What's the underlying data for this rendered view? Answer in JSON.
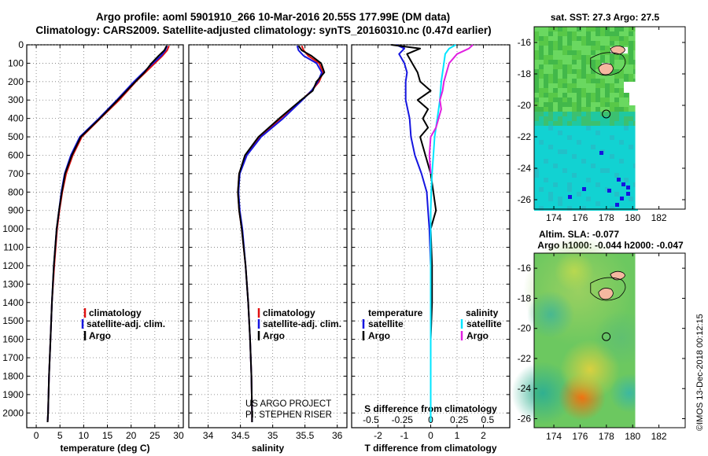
{
  "header": {
    "line1": "Argo profile: aoml 5901910_266 10-Mar-2016 20.55S 177.99E (DM data)",
    "line2": "Climatology: CARS2009. Satellite-adjusted climatology: synTS_20160310.nc (0.47d earlier)"
  },
  "credits": {
    "project": "US ARGO PROJECT",
    "pi": "PI: STEPHEN RISER",
    "stamp": "©IMOS 13-Dec-2018 00:12:15"
  },
  "legend_temp": [
    "climatology",
    "satellite-adj. clim.",
    "Argo"
  ],
  "legend_sal": [
    "climatology",
    "satellite-adj. clim.",
    "Argo"
  ],
  "legend_diff": {
    "temp_title": "temperature",
    "sal_title": "salinity",
    "temp_items": [
      "satellite",
      "Argo"
    ],
    "sal_items": [
      "satellite",
      "Argo"
    ]
  },
  "maps": {
    "top_title": "sat. SST: 27.3 Argo: 27.5",
    "mid_title1": "Altim. SLA: -0.077",
    "mid_title2": "Argo h1000: -0.044 h2000: -0.047",
    "lat_ticks": [
      "-16",
      "-18",
      "-20",
      "-22",
      "-24",
      "-26"
    ],
    "lon_ticks": [
      "174",
      "176",
      "178",
      "180",
      "182"
    ]
  },
  "colors": {
    "climatology": "#e01010",
    "satellite": "#1515e0",
    "argo": "#000000",
    "sal_sat": "#00e5ff",
    "sal_argo": "#e020e0",
    "land": "#f5b8a0",
    "sst_cyan": "#10d8d8",
    "sst_green": "#40c050"
  },
  "chart_data": [
    {
      "type": "line",
      "title": "",
      "xlabel": "temperature (deg C)",
      "ylabel": "",
      "xlim": [
        -2,
        31
      ],
      "ylim": [
        2080,
        0
      ],
      "xticks": [
        "0",
        "5",
        "10",
        "15",
        "20",
        "25",
        "30"
      ],
      "yticks": [
        "0",
        "100",
        "200",
        "300",
        "400",
        "500",
        "600",
        "700",
        "800",
        "900",
        "1000",
        "1100",
        "1200",
        "1300",
        "1400",
        "1500",
        "1600",
        "1700",
        "1800",
        "1900",
        "2000"
      ],
      "grid": true,
      "series": [
        {
          "name": "climatology",
          "color": "#e01010",
          "depth": [
            5,
            30,
            60,
            100,
            150,
            200,
            300,
            400,
            500,
            600,
            700,
            800,
            900,
            1000,
            1200,
            1400,
            1600,
            1800,
            2000,
            2050
          ],
          "values": [
            28.0,
            27.6,
            26.6,
            25.0,
            23.0,
            21.0,
            17.5,
            13.5,
            9.6,
            7.7,
            6.3,
            5.5,
            4.9,
            4.4,
            3.8,
            3.3,
            3.0,
            2.7,
            2.5,
            2.4
          ]
        },
        {
          "name": "satellite-adj. clim.",
          "color": "#1515e0",
          "depth": [
            5,
            30,
            60,
            100,
            150,
            200,
            300,
            400,
            500,
            600,
            700,
            800,
            900,
            1000,
            1200,
            1400,
            1600,
            1800,
            2000,
            2050
          ],
          "values": [
            27.6,
            27.2,
            26.3,
            24.6,
            22.6,
            20.6,
            17.0,
            13.2,
            9.2,
            7.3,
            6.0,
            5.3,
            4.8,
            4.3,
            3.7,
            3.3,
            3.0,
            2.7,
            2.5,
            2.4
          ]
        },
        {
          "name": "Argo",
          "color": "#000000",
          "depth": [
            5,
            30,
            60,
            100,
            150,
            200,
            300,
            400,
            500,
            600,
            700,
            800,
            900,
            1000,
            1200,
            1400,
            1600,
            1800,
            2000,
            2050
          ],
          "values": [
            27.5,
            27.0,
            25.8,
            24.3,
            22.8,
            20.9,
            17.2,
            13.4,
            9.4,
            7.5,
            6.1,
            5.4,
            4.8,
            4.3,
            3.7,
            3.3,
            3.0,
            2.7,
            2.5,
            2.4
          ]
        }
      ]
    },
    {
      "type": "line",
      "title": "",
      "xlabel": "salinity",
      "ylabel": "",
      "xlim": [
        33.7,
        36.15
      ],
      "ylim": [
        2080,
        0
      ],
      "xticks": [
        "34",
        "34.5",
        "35",
        "35.5",
        "36"
      ],
      "grid": true,
      "series": [
        {
          "name": "climatology",
          "color": "#e01010",
          "depth": [
            5,
            30,
            60,
            100,
            150,
            200,
            250,
            300,
            400,
            500,
            600,
            700,
            800,
            900,
            1000,
            1200,
            1400,
            1600,
            1800,
            2000,
            2050
          ],
          "values": [
            35.45,
            35.48,
            35.55,
            35.72,
            35.78,
            35.72,
            35.6,
            35.45,
            35.12,
            34.8,
            34.58,
            34.48,
            34.46,
            34.48,
            34.52,
            34.58,
            34.62,
            34.65,
            34.67,
            34.68,
            34.68
          ]
        },
        {
          "name": "satellite-adj. clim.",
          "color": "#1515e0",
          "depth": [
            5,
            30,
            60,
            100,
            150,
            200,
            250,
            300,
            400,
            500,
            600,
            700,
            800,
            900,
            1000,
            1200,
            1400,
            1600,
            1800,
            2000,
            2050
          ],
          "values": [
            35.38,
            35.4,
            35.48,
            35.68,
            35.76,
            35.7,
            35.6,
            35.46,
            35.16,
            34.82,
            34.6,
            34.49,
            34.47,
            34.49,
            34.53,
            34.58,
            34.62,
            34.65,
            34.67,
            34.68,
            34.68
          ]
        },
        {
          "name": "Argo",
          "color": "#000000",
          "depth": [
            5,
            30,
            60,
            100,
            150,
            200,
            250,
            300,
            400,
            500,
            600,
            700,
            800,
            900,
            1000,
            1200,
            1400,
            1600,
            1800,
            2000,
            2050
          ],
          "values": [
            35.4,
            35.45,
            35.6,
            35.75,
            35.8,
            35.68,
            35.62,
            35.44,
            35.1,
            34.78,
            34.57,
            34.48,
            34.46,
            34.48,
            34.52,
            34.58,
            34.62,
            34.65,
            34.67,
            34.68,
            34.68
          ]
        }
      ]
    },
    {
      "type": "line",
      "title": "",
      "xlabel": "T difference from climatology",
      "xlabel_top": "S difference from climatology",
      "ylabel": "",
      "xlim": [
        -3,
        3
      ],
      "ylim": [
        2080,
        0
      ],
      "xticks": [
        "-2",
        "-1",
        "0",
        "1",
        "2"
      ],
      "xticks_top": [
        "-0.5",
        "-0.25",
        "0",
        "0.25",
        "0.5"
      ],
      "grid": true,
      "series": [
        {
          "name": "temperature satellite",
          "color": "#1515e0",
          "depth": [
            0,
            20,
            50,
            100,
            150,
            200,
            300,
            400,
            500,
            600,
            700,
            800,
            900,
            1000,
            1200,
            1400,
            1600,
            1800,
            2000,
            2050
          ],
          "values": [
            -1.3,
            -1.0,
            -1.2,
            -1.0,
            -0.9,
            -0.95,
            -0.95,
            -0.8,
            -0.75,
            -0.6,
            -0.35,
            -0.15,
            -0.1,
            -0.05,
            0.0,
            0.0,
            0.0,
            0.0,
            0.0,
            0.0
          ]
        },
        {
          "name": "temperature Argo",
          "color": "#000000",
          "depth": [
            0,
            20,
            50,
            100,
            150,
            200,
            250,
            300,
            350,
            400,
            450,
            500,
            600,
            700,
            800,
            900,
            1000,
            1200,
            1400,
            1600,
            1800,
            2000,
            2050
          ],
          "values": [
            -1.5,
            -0.4,
            -0.9,
            -0.7,
            -0.5,
            -0.4,
            0.0,
            -0.5,
            -0.1,
            -0.3,
            -0.1,
            -0.4,
            -0.2,
            0.0,
            0.1,
            0.2,
            0.0,
            0.05,
            0.05,
            0.0,
            0.0,
            0.0,
            0.0
          ]
        },
        {
          "name": "salinity satellite",
          "color": "#00e5ff",
          "depth": [
            0,
            20,
            50,
            100,
            150,
            200,
            300,
            400,
            500,
            600,
            700,
            800,
            900,
            1000,
            1200,
            1400,
            1600,
            1800,
            2000,
            2050
          ],
          "values": [
            0.95,
            0.7,
            0.55,
            0.5,
            0.45,
            0.4,
            0.35,
            0.25,
            0.15,
            0.1,
            0.05,
            0.02,
            0.0,
            0.0,
            0.0,
            0.0,
            0.0,
            0.0,
            0.0,
            0.0
          ]
        },
        {
          "name": "salinity Argo",
          "color": "#e020e0",
          "depth": [
            0,
            20,
            50,
            100,
            150,
            200,
            250,
            300,
            350,
            400,
            450,
            500,
            600,
            700
          ],
          "values": [
            1.6,
            1.45,
            1.0,
            0.7,
            0.6,
            0.5,
            0.45,
            0.35,
            0.4,
            0.3,
            0.2,
            0.0,
            -0.05,
            0.0
          ]
        }
      ]
    }
  ]
}
